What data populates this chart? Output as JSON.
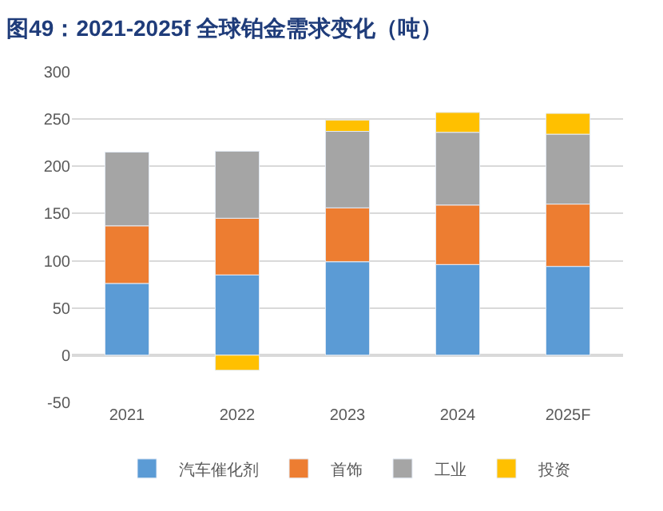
{
  "chart_data": {
    "type": "bar",
    "stacked": true,
    "title": "图49：2021-2025f 全球铂金需求变化（吨）",
    "categories": [
      "2021",
      "2022",
      "2023",
      "2024",
      "2025F"
    ],
    "series": [
      {
        "name": "汽车催化剂",
        "color": "#5b9bd5",
        "values": [
          76,
          85,
          99,
          96,
          94
        ]
      },
      {
        "name": "首饰",
        "color": "#ed7d31",
        "values": [
          61,
          60,
          57,
          63,
          66
        ]
      },
      {
        "name": "工业",
        "color": "#a5a5a5",
        "values": [
          78,
          71,
          81,
          77,
          74
        ]
      },
      {
        "name": "投资",
        "color": "#ffc000",
        "values": [
          null,
          -16,
          12,
          21,
          22
        ]
      }
    ],
    "ylim": [
      -50,
      300
    ],
    "yticks": [
      -50,
      0,
      50,
      100,
      150,
      200,
      250,
      300
    ],
    "grid": "y",
    "legend": "bottom"
  }
}
